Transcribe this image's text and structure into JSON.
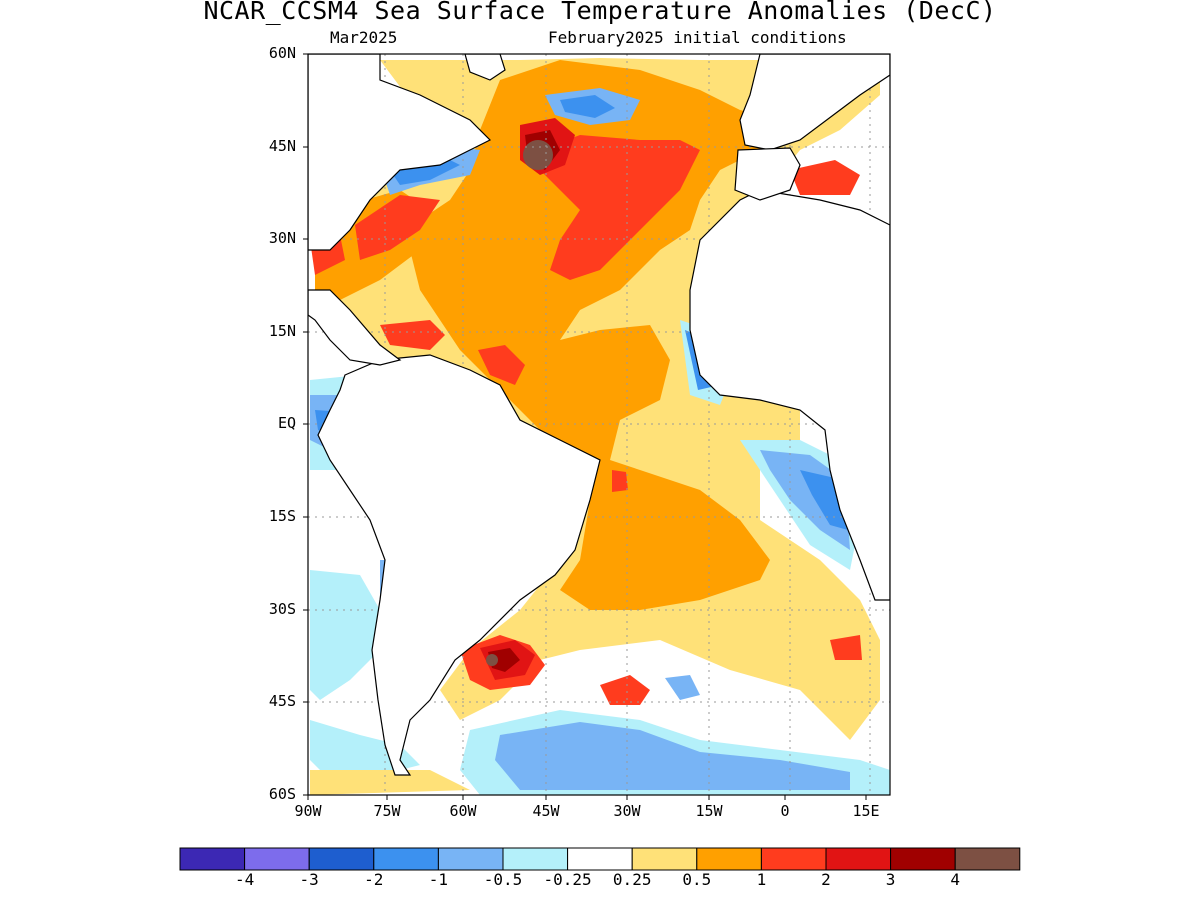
{
  "title": "NCAR_CCSM4 Sea Surface Temperature Anomalies (DecC)",
  "subtitle_left": "Mar2025",
  "subtitle_right": "February2025 initial conditions",
  "lat_labels": [
    "60N",
    "45N",
    "30N",
    "15N",
    "EQ",
    "15S",
    "30S",
    "45S",
    "60S"
  ],
  "lon_labels": [
    "90W",
    "75W",
    "60W",
    "45W",
    "30W",
    "15W",
    "0",
    "15E"
  ],
  "colorbar": {
    "colors": [
      "#3c28b4",
      "#7d6cec",
      "#1e5ecf",
      "#3c91ef",
      "#78b4f5",
      "#b4f0fa",
      "#ffffff",
      "#ffe178",
      "#ffa000",
      "#ff3c1e",
      "#e11414",
      "#a00000",
      "#7d5043"
    ],
    "labels": [
      "-4",
      "-3",
      "-2",
      "-1",
      "-0.5",
      "-0.25",
      "0.25",
      "0.5",
      "1",
      "2",
      "3",
      "4"
    ]
  },
  "palette": {
    "neg3": "#1e5ecf",
    "neg2": "#3c91ef",
    "neg1": "#78b4f5",
    "neg05": "#b4f0fa",
    "pos025": "#ffe178",
    "pos05": "#ffa000",
    "pos1": "#ff3c1e",
    "pos2": "#e11414",
    "pos3": "#a00000",
    "pos4": "#7d5043",
    "land": "#ffffff"
  }
}
